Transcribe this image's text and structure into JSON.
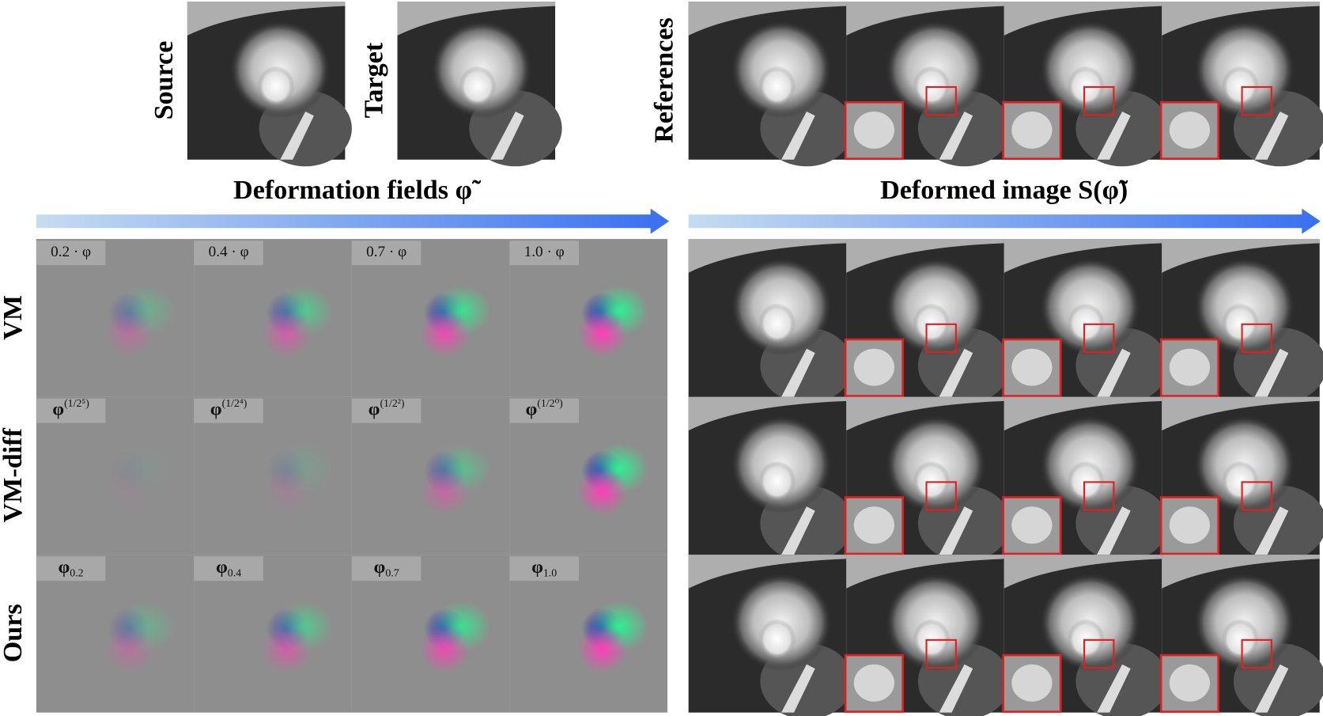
{
  "top": {
    "source": "Source",
    "target": "Target",
    "references": "References"
  },
  "headings": {
    "fields": "Deformation fields φ̃",
    "deformed": "Deformed image S(φ̃)"
  },
  "rows": [
    {
      "label": "VM",
      "steps": [
        {
          "text": "0.2 · φ"
        },
        {
          "text": "0.4 · φ"
        },
        {
          "text": "0.7 · φ"
        },
        {
          "text": "1.0 · φ"
        }
      ]
    },
    {
      "label": "VM-diff",
      "steps": [
        {
          "symbol": "φ",
          "sup": "(1/2⁵)"
        },
        {
          "symbol": "φ",
          "sup": "(1/2⁴)"
        },
        {
          "symbol": "φ",
          "sup": "(1/2²)"
        },
        {
          "symbol": "φ",
          "sup": "(1/2⁰)"
        }
      ]
    },
    {
      "label": "Ours",
      "steps": [
        {
          "symbol": "φ",
          "sub": "0.2"
        },
        {
          "symbol": "φ",
          "sub": "0.4"
        },
        {
          "symbol": "φ",
          "sub": "0.7"
        },
        {
          "symbol": "φ",
          "sub": "1.0"
        }
      ]
    }
  ]
}
